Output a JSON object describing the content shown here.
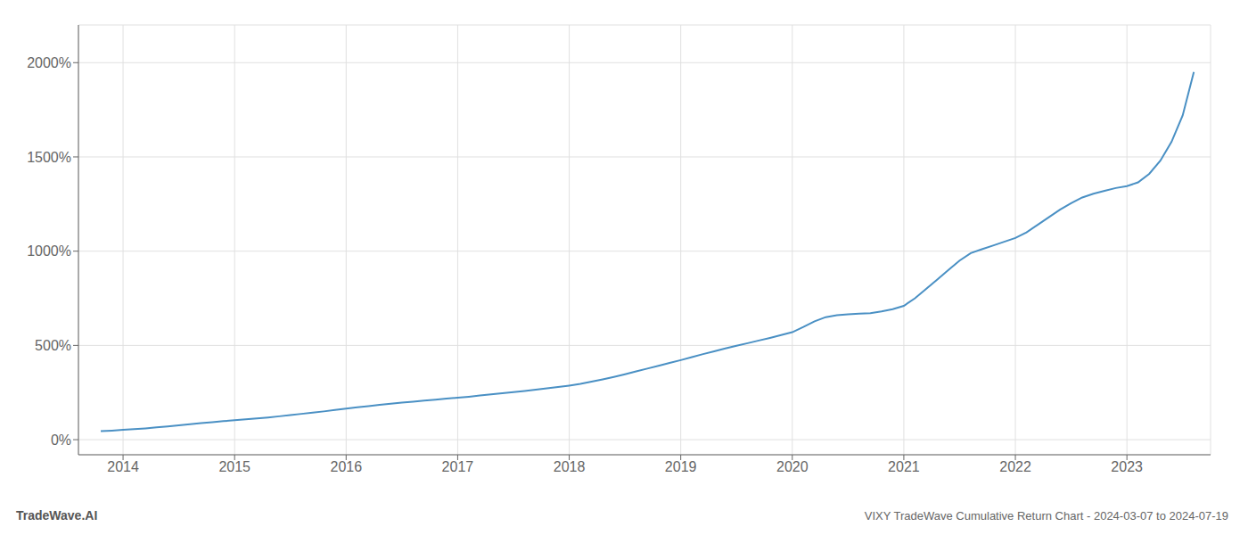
{
  "chart_data": {
    "type": "line",
    "title": "VIXY TradeWave Cumulative Return Chart - 2024-03-07 to 2024-07-19",
    "annotations": [
      "TradeWave.AI"
    ],
    "color": "#4a90c4",
    "grid": true,
    "xlim": [
      2013.6,
      2023.75
    ],
    "ylim": [
      -80,
      2200
    ],
    "xticks": [
      2014,
      2015,
      2016,
      2017,
      2018,
      2019,
      2020,
      2021,
      2022,
      2023
    ],
    "yticks": [
      {
        "value": 0,
        "label": "0%"
      },
      {
        "value": 500,
        "label": "500%"
      },
      {
        "value": 1000,
        "label": "1000%"
      },
      {
        "value": 1500,
        "label": "1500%"
      },
      {
        "value": 2000,
        "label": "2000%"
      }
    ],
    "x": [
      2013.8,
      2013.9,
      2014.0,
      2014.1,
      2014.2,
      2014.3,
      2014.4,
      2014.5,
      2014.6,
      2014.7,
      2014.8,
      2014.9,
      2015.0,
      2015.1,
      2015.2,
      2015.3,
      2015.4,
      2015.5,
      2015.6,
      2015.7,
      2015.8,
      2015.9,
      2016.0,
      2016.1,
      2016.2,
      2016.3,
      2016.4,
      2016.5,
      2016.6,
      2016.7,
      2016.8,
      2016.9,
      2017.0,
      2017.1,
      2017.2,
      2017.3,
      2017.4,
      2017.5,
      2017.6,
      2017.7,
      2017.8,
      2017.9,
      2018.0,
      2018.1,
      2018.2,
      2018.3,
      2018.4,
      2018.5,
      2018.6,
      2018.7,
      2018.8,
      2018.9,
      2019.0,
      2019.1,
      2019.2,
      2019.3,
      2019.4,
      2019.5,
      2019.6,
      2019.7,
      2019.8,
      2019.9,
      2020.0,
      2020.1,
      2020.2,
      2020.3,
      2020.4,
      2020.5,
      2020.6,
      2020.7,
      2020.8,
      2020.9,
      2021.0,
      2021.1,
      2021.2,
      2021.3,
      2021.4,
      2021.5,
      2021.6,
      2021.7,
      2021.8,
      2021.9,
      2022.0,
      2022.1,
      2022.2,
      2022.3,
      2022.4,
      2022.5,
      2022.6,
      2022.7,
      2022.8,
      2022.9,
      2023.0,
      2023.1,
      2023.2,
      2023.3,
      2023.4,
      2023.5,
      2023.6
    ],
    "values": [
      45,
      48,
      52,
      56,
      60,
      65,
      70,
      76,
      82,
      88,
      93,
      98,
      103,
      108,
      113,
      118,
      124,
      130,
      137,
      143,
      150,
      158,
      165,
      172,
      178,
      185,
      191,
      197,
      202,
      207,
      212,
      218,
      223,
      228,
      234,
      240,
      246,
      252,
      258,
      265,
      272,
      279,
      287,
      296,
      308,
      320,
      333,
      347,
      362,
      377,
      392,
      407,
      422,
      438,
      454,
      469,
      484,
      498,
      512,
      526,
      540,
      555,
      570,
      598,
      628,
      650,
      660,
      665,
      668,
      671,
      680,
      692,
      710,
      750,
      800,
      850,
      900,
      950,
      990,
      1010,
      1030,
      1050,
      1070,
      1100,
      1140,
      1180,
      1220,
      1255,
      1285,
      1305,
      1320,
      1335,
      1345,
      1365,
      1410,
      1480,
      1580,
      1720,
      1950
    ]
  }
}
